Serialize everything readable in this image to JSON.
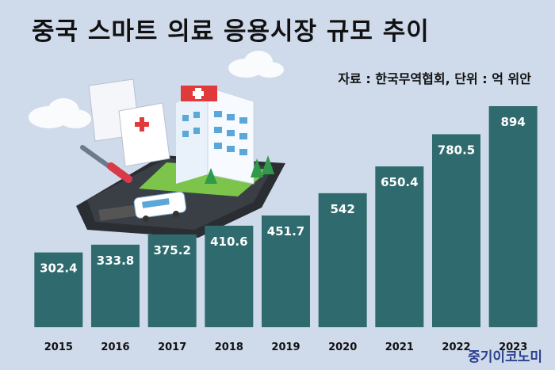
{
  "chart_data": {
    "type": "bar",
    "title": "중국 스마트 의료 응용시장 규모 추이",
    "source_note": "자료 : 한국무역협회, 단위 : 억 위안",
    "categories": [
      "2015",
      "2016",
      "2017",
      "2018",
      "2019",
      "2020",
      "2021",
      "2022",
      "2023"
    ],
    "values": [
      302.4,
      333.8,
      375.2,
      410.6,
      451.7,
      542,
      650.4,
      780.5,
      894
    ],
    "value_labels": [
      "302.4",
      "333.8",
      "375.2",
      "410.6",
      "451.7",
      "542",
      "650.4",
      "780.5",
      "894"
    ],
    "xlabel": "",
    "ylabel": "",
    "ylim": [
      0,
      894
    ],
    "grid": false,
    "bar_color": "#2f6b6e",
    "background_color": "#cfdaea"
  },
  "branding": {
    "publisher": "중기이코노미"
  },
  "illustration": {
    "icons": [
      "hospital-icon",
      "smartphone-icon",
      "ambulance-icon",
      "syringe-icon",
      "prescription-icon",
      "tree-icon",
      "cloud-icon"
    ]
  }
}
